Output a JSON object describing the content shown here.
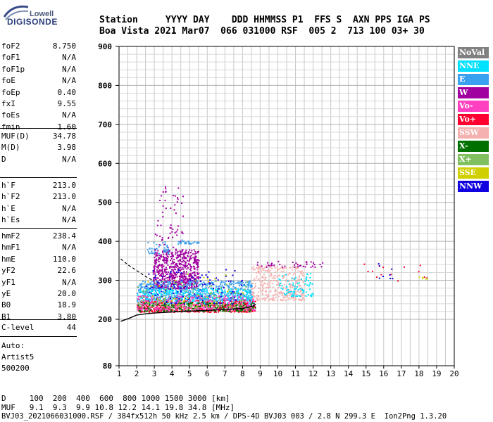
{
  "logo": {
    "line1": "Lowell",
    "line2": "DIGISONDE"
  },
  "header": {
    "row1": "Station     YYYY DAY    DDD HHMMSS P1  FFS S  AXN PPS IGA PS",
    "row2": "Boa Vista 2021 Mar07  066 031000 RSF  005 2  713 100 03+ 30"
  },
  "params": [
    {
      "group": [
        {
          "name": "foF2",
          "value": "8.750"
        },
        {
          "name": "foF1",
          "value": "N/A"
        },
        {
          "name": "foF1p",
          "value": "N/A"
        },
        {
          "name": "foE",
          "value": "N/A"
        },
        {
          "name": "foEp",
          "value": "0.40"
        },
        {
          "name": "fxI",
          "value": "9.55"
        },
        {
          "name": "foEs",
          "value": "N/A"
        },
        {
          "name": "fmin",
          "value": "1.60"
        }
      ]
    },
    {
      "group": [
        {
          "name": "MUF(D)",
          "value": "34.78"
        },
        {
          "name": "M(D)",
          "value": "3.98"
        },
        {
          "name": "D",
          "value": "N/A"
        }
      ]
    },
    {
      "group": [
        {
          "name": "h`F",
          "value": "213.0"
        },
        {
          "name": "h`F2",
          "value": "213.0"
        },
        {
          "name": "h`E",
          "value": "N/A"
        },
        {
          "name": "h`Es",
          "value": "N/A"
        }
      ]
    },
    {
      "group": [
        {
          "name": "hmF2",
          "value": "238.4"
        },
        {
          "name": "hmF1",
          "value": "N/A"
        },
        {
          "name": "hmE",
          "value": "110.0"
        },
        {
          "name": "yF2",
          "value": "22.6"
        },
        {
          "name": "yF1",
          "value": "N/A"
        },
        {
          "name": "yE",
          "value": "20.0"
        },
        {
          "name": "B0",
          "value": "18.9"
        },
        {
          "name": "B1",
          "value": "3.80"
        }
      ]
    },
    {
      "group": [
        {
          "name": "C-level",
          "value": "44"
        }
      ]
    }
  ],
  "notes": [
    "Auto:",
    "Artist5",
    "500200"
  ],
  "legend": [
    {
      "label": "NoVal",
      "color": "#808080"
    },
    {
      "label": "NNE",
      "color": "#00e0ff"
    },
    {
      "label": "E",
      "color": "#3aa0f0"
    },
    {
      "label": "W",
      "color": "#a000a0"
    },
    {
      "label": "Vo-",
      "color": "#ff40c0"
    },
    {
      "label": "Vo+",
      "color": "#ff0030"
    },
    {
      "label": "SSW",
      "color": "#f5b0b0"
    },
    {
      "label": "X-",
      "color": "#007000"
    },
    {
      "label": "X+",
      "color": "#80c060"
    },
    {
      "label": "SSE",
      "color": "#d0d000"
    },
    {
      "label": "NNW",
      "color": "#1000e0"
    }
  ],
  "footer": {
    "row1": "D     100  200  400  600  800 1000 1500 3000 [km]",
    "row2": "MUF   9.1  9.3  9.9 10.8 12.2 14.1 19.8 34.8 [MHz]",
    "row3": "BVJ03_2021066031000.RSF / 384fx512h 50 kHz 2.5 km / DPS-4D BVJ03 003 / 2.8 N 299.3 E  Ion2Png 1.3.20"
  },
  "chart_data": {
    "type": "scatter",
    "xlim": [
      1,
      20
    ],
    "ylim": [
      80,
      900
    ],
    "x_ticks": [
      1,
      2,
      3,
      4,
      5,
      6,
      7,
      8,
      9,
      10,
      11,
      12,
      13,
      14,
      15,
      16,
      17,
      18,
      19,
      20
    ],
    "y_ticks": [
      80,
      200,
      300,
      400,
      500,
      600,
      700,
      800,
      900
    ],
    "grid": true,
    "legend_placement": "right",
    "profile_curve": [
      [
        1.1,
        195
      ],
      [
        1.6,
        203
      ],
      [
        2.0,
        211
      ],
      [
        2.5,
        214
      ],
      [
        3.0,
        216
      ],
      [
        4.0,
        219
      ],
      [
        5.0,
        221
      ],
      [
        6.0,
        223
      ],
      [
        7.0,
        225
      ],
      [
        8.0,
        228
      ],
      [
        8.6,
        234
      ],
      [
        8.75,
        238
      ]
    ],
    "dashed_curve": [
      [
        1.1,
        355
      ],
      [
        1.5,
        340
      ],
      [
        2.0,
        325
      ],
      [
        2.5,
        310
      ],
      [
        3.0,
        298
      ]
    ],
    "trace_regions": [
      {
        "series": "W",
        "x": [
          2.9,
          5.5
        ],
        "y": [
          280,
          380
        ],
        "n": 700
      },
      {
        "series": "W",
        "x": [
          3.0,
          4.6
        ],
        "y": [
          380,
          560
        ],
        "n": 60
      },
      {
        "series": "E",
        "x": [
          2.0,
          8.6
        ],
        "y": [
          250,
          300
        ],
        "n": 600
      },
      {
        "series": "NNE",
        "x": [
          2.0,
          8.6
        ],
        "y": [
          240,
          280
        ],
        "n": 400
      },
      {
        "series": "Vo+",
        "x": [
          2.0,
          8.7
        ],
        "y": [
          220,
          250
        ],
        "n": 450
      },
      {
        "series": "X-",
        "x": [
          2.0,
          8.7
        ],
        "y": [
          222,
          245
        ],
        "n": 300
      },
      {
        "series": "Vo-",
        "x": [
          2.0,
          8.7
        ],
        "y": [
          225,
          262
        ],
        "n": 300
      },
      {
        "series": "SSW",
        "x": [
          8.5,
          11.5
        ],
        "y": [
          250,
          340
        ],
        "n": 350
      },
      {
        "series": "NNW",
        "x": [
          2.5,
          8.0
        ],
        "y": [
          240,
          330
        ],
        "n": 120
      },
      {
        "series": "X+",
        "x": [
          2.0,
          8.5
        ],
        "y": [
          230,
          300
        ],
        "n": 120
      },
      {
        "series": "SSE",
        "x": [
          2.5,
          8.0
        ],
        "y": [
          235,
          320
        ],
        "n": 40
      },
      {
        "series": "NNE",
        "x": [
          10.0,
          12.0
        ],
        "y": [
          260,
          320
        ],
        "n": 80
      },
      {
        "series": "E",
        "x": [
          2.5,
          3.8
        ],
        "y": [
          370,
          400
        ],
        "n": 40
      },
      {
        "series": "E",
        "x": [
          4.3,
          5.5
        ],
        "y": [
          395,
          405
        ],
        "n": 30
      },
      {
        "series": "W",
        "x": [
          8.8,
          12.8
        ],
        "y": [
          335,
          350
        ],
        "n": 40
      },
      {
        "series": "Vo+",
        "x": [
          14.5,
          18.5
        ],
        "y": [
          300,
          350
        ],
        "n": 14
      },
      {
        "series": "NNW",
        "x": [
          15.5,
          16.5
        ],
        "y": [
          300,
          350
        ],
        "n": 8
      },
      {
        "series": "SSE",
        "x": [
          17.5,
          18.5
        ],
        "y": [
          305,
          312
        ],
        "n": 5
      }
    ]
  }
}
